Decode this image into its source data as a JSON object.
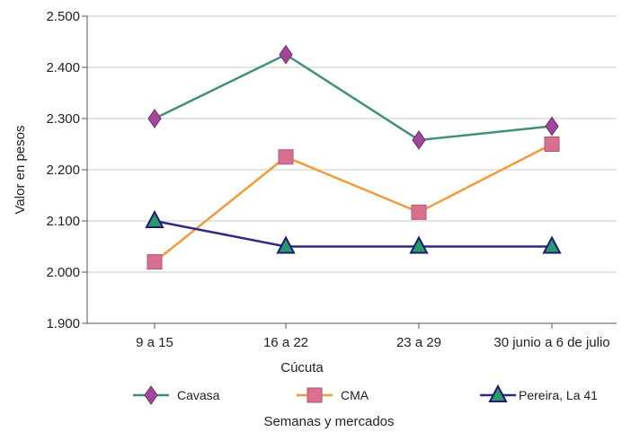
{
  "chart_data": {
    "type": "line",
    "title": "",
    "ylabel": "Valor en pesos",
    "xlabel": "Semanas y mercados",
    "group_label": "Cúcuta",
    "ylim": [
      1900,
      2500
    ],
    "yticks": [
      1900,
      2000,
      2100,
      2200,
      2300,
      2400,
      2500
    ],
    "ytick_labels": [
      "1.900",
      "2.000",
      "2.100",
      "2.200",
      "2.300",
      "2.400",
      "2.500"
    ],
    "grid": true,
    "legend_position": "bottom",
    "categories": [
      "9 a 15",
      "16 a 22",
      "23 a 29",
      "30 junio a 6 de julio"
    ],
    "series": [
      {
        "name": "Cavasa",
        "values": [
          2300,
          2425,
          2258,
          2285
        ],
        "line_color": "#3f8f7c",
        "marker": "diamond",
        "marker_color": "#a0479b"
      },
      {
        "name": "CMA",
        "values": [
          2020,
          2225,
          2117,
          2250
        ],
        "line_color": "#f39a3c",
        "marker": "square",
        "marker_color": "#d9708f"
      },
      {
        "name": "Pereira, La 41",
        "values": [
          2100,
          2050,
          2050,
          2050
        ],
        "line_color": "#2e2a86",
        "marker": "triangle",
        "marker_color": "#2a9a6e"
      }
    ]
  }
}
